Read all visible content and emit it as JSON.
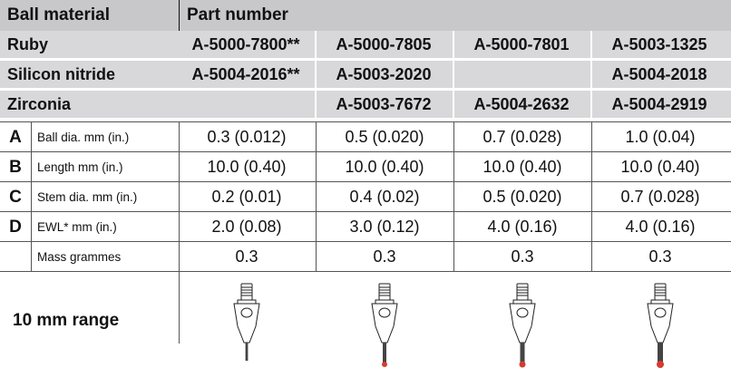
{
  "header": {
    "col1": "Ball material",
    "col2": "Part number"
  },
  "materials": [
    {
      "name": "Ruby",
      "parts": [
        "A-5000-7800**",
        "A-5000-7805",
        "A-5000-7801",
        "A-5003-1325"
      ]
    },
    {
      "name": "Silicon nitride",
      "parts": [
        "A-5004-2016**",
        "A-5003-2020",
        "",
        "A-5004-2018"
      ]
    },
    {
      "name": "Zirconia",
      "parts": [
        "",
        "A-5003-7672",
        "A-5004-2632",
        "A-5004-2919"
      ]
    }
  ],
  "rows": [
    {
      "letter": "A",
      "label": "Ball dia. mm (in.)",
      "values": [
        "0.3 (0.012)",
        "0.5 (0.020)",
        "0.7 (0.028)",
        "1.0 (0.04)"
      ]
    },
    {
      "letter": "B",
      "label": "Length mm (in.)",
      "values": [
        "10.0 (0.40)",
        "10.0 (0.40)",
        "10.0 (0.40)",
        "10.0 (0.40)"
      ]
    },
    {
      "letter": "C",
      "label": "Stem dia. mm (in.)",
      "values": [
        "0.2 (0.01)",
        "0.4 (0.02)",
        "0.5 (0.020)",
        "0.7 (0.028)"
      ]
    },
    {
      "letter": "D",
      "label": "EWL* mm (in.)",
      "values": [
        "2.0 (0.08)",
        "3.0 (0.12)",
        "4.0 (0.16)",
        "4.0 (0.16)"
      ]
    },
    {
      "letter": "",
      "label": "Mass grammes",
      "values": [
        "0.3",
        "0.3",
        "0.3",
        "0.3"
      ]
    }
  ],
  "range_label": "10 mm range",
  "colors": {
    "header_bg": "#c8c8ca",
    "material_bg": "#d8d8da",
    "ball_red": "#d83a2e"
  },
  "stylus_icons": [
    "stylus-icon",
    "stylus-icon",
    "stylus-icon",
    "stylus-icon"
  ]
}
